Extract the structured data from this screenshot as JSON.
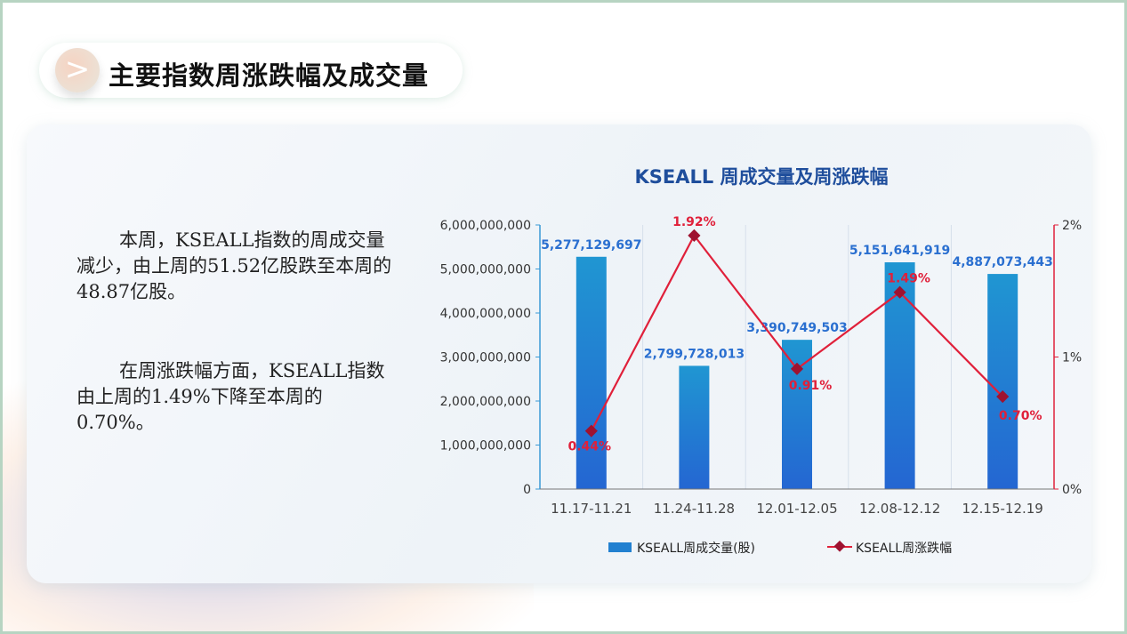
{
  "header": {
    "title": "主要指数周涨跌幅及成交量"
  },
  "text": {
    "p1": "本周，KSEALL指数的周成交量减少，由上周的51.52亿股跌至本周的48.87亿股。",
    "p2": "在周涨跌幅方面，KSEALL指数由上周的1.49%下降至本周的0.70%。"
  },
  "chart_data": {
    "type": "bar+line",
    "title": "KSEALL 周成交量及周涨跌幅",
    "categories": [
      "11.17-11.21",
      "11.24-11.28",
      "12.01-12.05",
      "12.08-12.12",
      "12.15-12.19"
    ],
    "series": [
      {
        "name": "KSEALL周成交量(股)",
        "type": "bar",
        "axis": "left",
        "values": [
          5277129697,
          2799728013,
          3390749503,
          5151641919,
          4887073443
        ],
        "labels": [
          "5,277,129,697",
          "2,799,728,013",
          "3,390,749,503",
          "5,151,641,919",
          "4,887,073,443"
        ],
        "color": "#2277cc"
      },
      {
        "name": "KSEALL周涨跌幅",
        "type": "line",
        "axis": "right",
        "values": [
          0.44,
          1.92,
          0.91,
          1.49,
          0.7
        ],
        "labels": [
          "0.44%",
          "1.92%",
          "0.91%",
          "1.49%",
          "0.70%"
        ],
        "color": "#e0203a"
      }
    ],
    "ylim": [
      0,
      6000000000
    ],
    "yticks": [
      "0",
      "1,000,000,000",
      "2,000,000,000",
      "3,000,000,000",
      "4,000,000,000",
      "5,000,000,000",
      "6,000,000,000"
    ],
    "y2lim": [
      0,
      2
    ],
    "y2ticks": [
      "0%",
      "1%",
      "2%"
    ],
    "legend": "bottom"
  }
}
